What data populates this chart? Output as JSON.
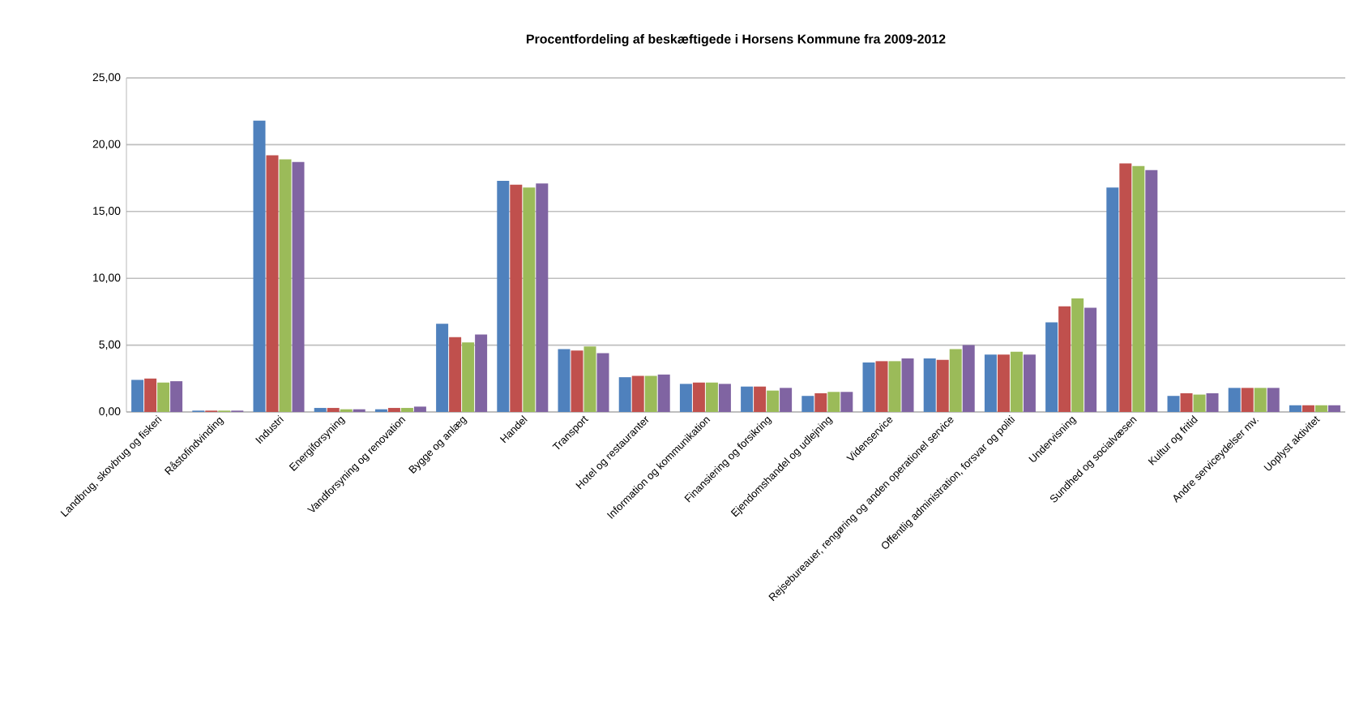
{
  "chart_data": {
    "type": "bar",
    "title": "Procentfordeling af beskæftigede i Horsens Kommune fra 2009-2012",
    "categories": [
      "Landbrug, skovbrug og fiskeri",
      "Råstofindvinding",
      "Industri",
      "Energiforsyning",
      "Vandforsyning og renovation",
      "Bygge og anlæg",
      "Handel",
      "Transport",
      "Hotel og restauranter",
      "Information og kommunikation",
      "Finansiering og forsikring",
      "Ejendomshandel og udlejning",
      "Videnservice",
      "Rejsebureauer, rengøring og anden operationel service",
      "Offentlig administration, forsvar og politi",
      "Undervisning",
      "Sundhed og socialvæsen",
      "Kultur og fritid",
      "Andre serviceydelser mv.",
      "Uoplyst aktivitet"
    ],
    "series": [
      {
        "color": "#4f81bd",
        "values": [
          2.4,
          0.1,
          21.8,
          0.3,
          0.2,
          6.6,
          17.3,
          4.7,
          2.6,
          2.1,
          1.9,
          1.2,
          3.7,
          4.0,
          4.3,
          6.7,
          16.8,
          1.2,
          1.8,
          0.5
        ]
      },
      {
        "color": "#c0504d",
        "values": [
          2.5,
          0.1,
          19.2,
          0.3,
          0.3,
          5.6,
          17.0,
          4.6,
          2.7,
          2.2,
          1.9,
          1.4,
          3.8,
          3.9,
          4.3,
          7.9,
          18.6,
          1.4,
          1.8,
          0.5
        ]
      },
      {
        "color": "#9bbb59",
        "values": [
          2.2,
          0.1,
          18.9,
          0.2,
          0.3,
          5.2,
          16.8,
          4.9,
          2.7,
          2.2,
          1.6,
          1.5,
          3.8,
          4.7,
          4.5,
          8.5,
          18.4,
          1.3,
          1.8,
          0.5
        ]
      },
      {
        "color": "#8064a2",
        "values": [
          2.3,
          0.1,
          18.7,
          0.2,
          0.4,
          5.8,
          17.1,
          4.4,
          2.8,
          2.1,
          1.8,
          1.5,
          4.0,
          5.0,
          4.3,
          7.8,
          18.1,
          1.4,
          1.8,
          0.5
        ]
      }
    ],
    "ylim": [
      0,
      25
    ],
    "yticks": [
      {
        "value": 0,
        "label": "0,00"
      },
      {
        "value": 5,
        "label": "5,00"
      },
      {
        "value": 10,
        "label": "10,00"
      },
      {
        "value": 15,
        "label": "15,00"
      },
      {
        "value": 20,
        "label": "20,00"
      },
      {
        "value": 25,
        "label": "25,00"
      }
    ],
    "grid": "y"
  }
}
